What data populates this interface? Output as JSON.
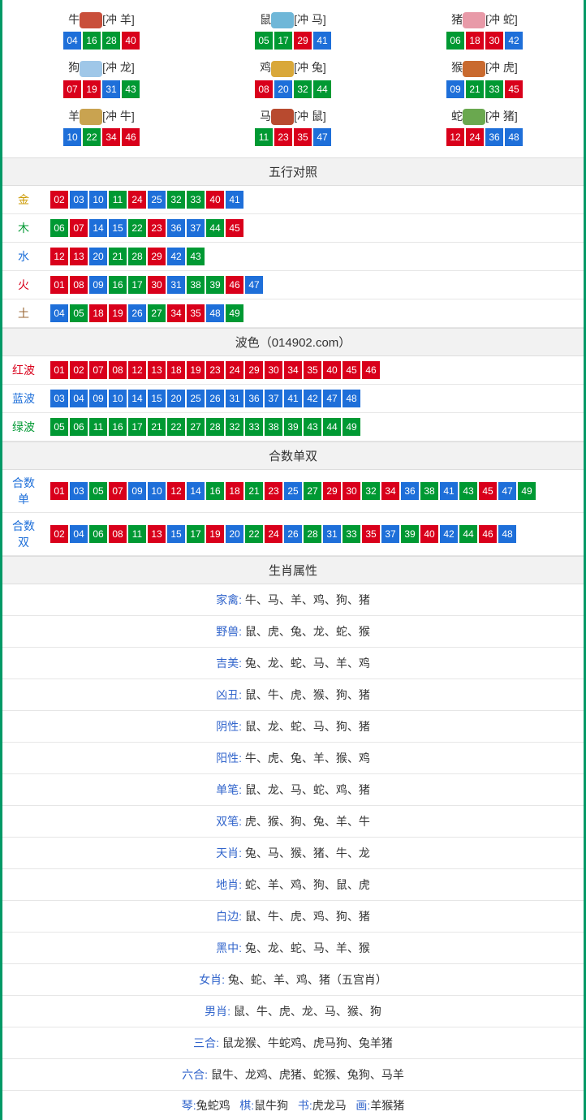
{
  "colors": {
    "red": "#d9001b",
    "blue": "#1e6fd9",
    "green": "#009933",
    "border": "#009966"
  },
  "zodiac_icon_colors": {
    "牛": "#c94f3b",
    "鼠": "#6fb7d8",
    "猪": "#e89aa8",
    "狗": "#9fc7e8",
    "鸡": "#d9a83a",
    "猴": "#c96a2f",
    "羊": "#c9a350",
    "马": "#b84a2f",
    "蛇": "#6aa84f"
  },
  "zodiac": [
    {
      "name": "牛",
      "clash": "[冲 羊]",
      "balls": [
        {
          "n": "04",
          "c": "blue"
        },
        {
          "n": "16",
          "c": "green"
        },
        {
          "n": "28",
          "c": "green"
        },
        {
          "n": "40",
          "c": "red"
        }
      ]
    },
    {
      "name": "鼠",
      "clash": "[冲 马]",
      "balls": [
        {
          "n": "05",
          "c": "green"
        },
        {
          "n": "17",
          "c": "green"
        },
        {
          "n": "29",
          "c": "red"
        },
        {
          "n": "41",
          "c": "blue"
        }
      ]
    },
    {
      "name": "猪",
      "clash": "[冲 蛇]",
      "balls": [
        {
          "n": "06",
          "c": "green"
        },
        {
          "n": "18",
          "c": "red"
        },
        {
          "n": "30",
          "c": "red"
        },
        {
          "n": "42",
          "c": "blue"
        }
      ]
    },
    {
      "name": "狗",
      "clash": "[冲 龙]",
      "balls": [
        {
          "n": "07",
          "c": "red"
        },
        {
          "n": "19",
          "c": "red"
        },
        {
          "n": "31",
          "c": "blue"
        },
        {
          "n": "43",
          "c": "green"
        }
      ]
    },
    {
      "name": "鸡",
      "clash": "[冲 兔]",
      "balls": [
        {
          "n": "08",
          "c": "red"
        },
        {
          "n": "20",
          "c": "blue"
        },
        {
          "n": "32",
          "c": "green"
        },
        {
          "n": "44",
          "c": "green"
        }
      ]
    },
    {
      "name": "猴",
      "clash": "[冲 虎]",
      "balls": [
        {
          "n": "09",
          "c": "blue"
        },
        {
          "n": "21",
          "c": "green"
        },
        {
          "n": "33",
          "c": "green"
        },
        {
          "n": "45",
          "c": "red"
        }
      ]
    },
    {
      "name": "羊",
      "clash": "[冲 牛]",
      "balls": [
        {
          "n": "10",
          "c": "blue"
        },
        {
          "n": "22",
          "c": "green"
        },
        {
          "n": "34",
          "c": "red"
        },
        {
          "n": "46",
          "c": "red"
        }
      ]
    },
    {
      "name": "马",
      "clash": "[冲 鼠]",
      "balls": [
        {
          "n": "11",
          "c": "green"
        },
        {
          "n": "23",
          "c": "red"
        },
        {
          "n": "35",
          "c": "red"
        },
        {
          "n": "47",
          "c": "blue"
        }
      ]
    },
    {
      "name": "蛇",
      "clash": "[冲 猪]",
      "balls": [
        {
          "n": "12",
          "c": "red"
        },
        {
          "n": "24",
          "c": "red"
        },
        {
          "n": "36",
          "c": "blue"
        },
        {
          "n": "48",
          "c": "blue"
        }
      ]
    }
  ],
  "wuxing_header": "五行对照",
  "wuxing": [
    {
      "label": "金",
      "label_color": "#cc9900",
      "balls": [
        {
          "n": "02",
          "c": "red"
        },
        {
          "n": "03",
          "c": "blue"
        },
        {
          "n": "10",
          "c": "blue"
        },
        {
          "n": "11",
          "c": "green"
        },
        {
          "n": "24",
          "c": "red"
        },
        {
          "n": "25",
          "c": "blue"
        },
        {
          "n": "32",
          "c": "green"
        },
        {
          "n": "33",
          "c": "green"
        },
        {
          "n": "40",
          "c": "red"
        },
        {
          "n": "41",
          "c": "blue"
        }
      ]
    },
    {
      "label": "木",
      "label_color": "#009933",
      "balls": [
        {
          "n": "06",
          "c": "green"
        },
        {
          "n": "07",
          "c": "red"
        },
        {
          "n": "14",
          "c": "blue"
        },
        {
          "n": "15",
          "c": "blue"
        },
        {
          "n": "22",
          "c": "green"
        },
        {
          "n": "23",
          "c": "red"
        },
        {
          "n": "36",
          "c": "blue"
        },
        {
          "n": "37",
          "c": "blue"
        },
        {
          "n": "44",
          "c": "green"
        },
        {
          "n": "45",
          "c": "red"
        }
      ]
    },
    {
      "label": "水",
      "label_color": "#1e6fd9",
      "balls": [
        {
          "n": "12",
          "c": "red"
        },
        {
          "n": "13",
          "c": "red"
        },
        {
          "n": "20",
          "c": "blue"
        },
        {
          "n": "21",
          "c": "green"
        },
        {
          "n": "28",
          "c": "green"
        },
        {
          "n": "29",
          "c": "red"
        },
        {
          "n": "42",
          "c": "blue"
        },
        {
          "n": "43",
          "c": "green"
        }
      ]
    },
    {
      "label": "火",
      "label_color": "#d9001b",
      "balls": [
        {
          "n": "01",
          "c": "red"
        },
        {
          "n": "08",
          "c": "red"
        },
        {
          "n": "09",
          "c": "blue"
        },
        {
          "n": "16",
          "c": "green"
        },
        {
          "n": "17",
          "c": "green"
        },
        {
          "n": "30",
          "c": "red"
        },
        {
          "n": "31",
          "c": "blue"
        },
        {
          "n": "38",
          "c": "green"
        },
        {
          "n": "39",
          "c": "green"
        },
        {
          "n": "46",
          "c": "red"
        },
        {
          "n": "47",
          "c": "blue"
        }
      ]
    },
    {
      "label": "土",
      "label_color": "#996633",
      "balls": [
        {
          "n": "04",
          "c": "blue"
        },
        {
          "n": "05",
          "c": "green"
        },
        {
          "n": "18",
          "c": "red"
        },
        {
          "n": "19",
          "c": "red"
        },
        {
          "n": "26",
          "c": "blue"
        },
        {
          "n": "27",
          "c": "green"
        },
        {
          "n": "34",
          "c": "red"
        },
        {
          "n": "35",
          "c": "red"
        },
        {
          "n": "48",
          "c": "blue"
        },
        {
          "n": "49",
          "c": "green"
        }
      ]
    }
  ],
  "bose_header": "波色（014902.com）",
  "bose": [
    {
      "label": "红波",
      "label_color": "#d9001b",
      "balls": [
        {
          "n": "01",
          "c": "red"
        },
        {
          "n": "02",
          "c": "red"
        },
        {
          "n": "07",
          "c": "red"
        },
        {
          "n": "08",
          "c": "red"
        },
        {
          "n": "12",
          "c": "red"
        },
        {
          "n": "13",
          "c": "red"
        },
        {
          "n": "18",
          "c": "red"
        },
        {
          "n": "19",
          "c": "red"
        },
        {
          "n": "23",
          "c": "red"
        },
        {
          "n": "24",
          "c": "red"
        },
        {
          "n": "29",
          "c": "red"
        },
        {
          "n": "30",
          "c": "red"
        },
        {
          "n": "34",
          "c": "red"
        },
        {
          "n": "35",
          "c": "red"
        },
        {
          "n": "40",
          "c": "red"
        },
        {
          "n": "45",
          "c": "red"
        },
        {
          "n": "46",
          "c": "red"
        }
      ]
    },
    {
      "label": "蓝波",
      "label_color": "#1e6fd9",
      "balls": [
        {
          "n": "03",
          "c": "blue"
        },
        {
          "n": "04",
          "c": "blue"
        },
        {
          "n": "09",
          "c": "blue"
        },
        {
          "n": "10",
          "c": "blue"
        },
        {
          "n": "14",
          "c": "blue"
        },
        {
          "n": "15",
          "c": "blue"
        },
        {
          "n": "20",
          "c": "blue"
        },
        {
          "n": "25",
          "c": "blue"
        },
        {
          "n": "26",
          "c": "blue"
        },
        {
          "n": "31",
          "c": "blue"
        },
        {
          "n": "36",
          "c": "blue"
        },
        {
          "n": "37",
          "c": "blue"
        },
        {
          "n": "41",
          "c": "blue"
        },
        {
          "n": "42",
          "c": "blue"
        },
        {
          "n": "47",
          "c": "blue"
        },
        {
          "n": "48",
          "c": "blue"
        }
      ]
    },
    {
      "label": "绿波",
      "label_color": "#009933",
      "balls": [
        {
          "n": "05",
          "c": "green"
        },
        {
          "n": "06",
          "c": "green"
        },
        {
          "n": "11",
          "c": "green"
        },
        {
          "n": "16",
          "c": "green"
        },
        {
          "n": "17",
          "c": "green"
        },
        {
          "n": "21",
          "c": "green"
        },
        {
          "n": "22",
          "c": "green"
        },
        {
          "n": "27",
          "c": "green"
        },
        {
          "n": "28",
          "c": "green"
        },
        {
          "n": "32",
          "c": "green"
        },
        {
          "n": "33",
          "c": "green"
        },
        {
          "n": "38",
          "c": "green"
        },
        {
          "n": "39",
          "c": "green"
        },
        {
          "n": "43",
          "c": "green"
        },
        {
          "n": "44",
          "c": "green"
        },
        {
          "n": "49",
          "c": "green"
        }
      ]
    }
  ],
  "heshu_header": "合数单双",
  "heshu": [
    {
      "label": "合数单",
      "label_color": "#1e6fd9",
      "balls": [
        {
          "n": "01",
          "c": "red"
        },
        {
          "n": "03",
          "c": "blue"
        },
        {
          "n": "05",
          "c": "green"
        },
        {
          "n": "07",
          "c": "red"
        },
        {
          "n": "09",
          "c": "blue"
        },
        {
          "n": "10",
          "c": "blue"
        },
        {
          "n": "12",
          "c": "red"
        },
        {
          "n": "14",
          "c": "blue"
        },
        {
          "n": "16",
          "c": "green"
        },
        {
          "n": "18",
          "c": "red"
        },
        {
          "n": "21",
          "c": "green"
        },
        {
          "n": "23",
          "c": "red"
        },
        {
          "n": "25",
          "c": "blue"
        },
        {
          "n": "27",
          "c": "green"
        },
        {
          "n": "29",
          "c": "red"
        },
        {
          "n": "30",
          "c": "red"
        },
        {
          "n": "32",
          "c": "green"
        },
        {
          "n": "34",
          "c": "red"
        },
        {
          "n": "36",
          "c": "blue"
        },
        {
          "n": "38",
          "c": "green"
        },
        {
          "n": "41",
          "c": "blue"
        },
        {
          "n": "43",
          "c": "green"
        },
        {
          "n": "45",
          "c": "red"
        },
        {
          "n": "47",
          "c": "blue"
        },
        {
          "n": "49",
          "c": "green"
        }
      ]
    },
    {
      "label": "合数双",
      "label_color": "#1e6fd9",
      "balls": [
        {
          "n": "02",
          "c": "red"
        },
        {
          "n": "04",
          "c": "blue"
        },
        {
          "n": "06",
          "c": "green"
        },
        {
          "n": "08",
          "c": "red"
        },
        {
          "n": "11",
          "c": "green"
        },
        {
          "n": "13",
          "c": "red"
        },
        {
          "n": "15",
          "c": "blue"
        },
        {
          "n": "17",
          "c": "green"
        },
        {
          "n": "19",
          "c": "red"
        },
        {
          "n": "20",
          "c": "blue"
        },
        {
          "n": "22",
          "c": "green"
        },
        {
          "n": "24",
          "c": "red"
        },
        {
          "n": "26",
          "c": "blue"
        },
        {
          "n": "28",
          "c": "green"
        },
        {
          "n": "31",
          "c": "blue"
        },
        {
          "n": "33",
          "c": "green"
        },
        {
          "n": "35",
          "c": "red"
        },
        {
          "n": "37",
          "c": "blue"
        },
        {
          "n": "39",
          "c": "green"
        },
        {
          "n": "40",
          "c": "red"
        },
        {
          "n": "42",
          "c": "blue"
        },
        {
          "n": "44",
          "c": "green"
        },
        {
          "n": "46",
          "c": "red"
        },
        {
          "n": "48",
          "c": "blue"
        }
      ]
    }
  ],
  "attr_header": "生肖属性",
  "attrs": [
    {
      "k": "家禽:",
      "v": "牛、马、羊、鸡、狗、猪"
    },
    {
      "k": "野兽:",
      "v": "鼠、虎、兔、龙、蛇、猴"
    },
    {
      "k": "吉美:",
      "v": "兔、龙、蛇、马、羊、鸡"
    },
    {
      "k": "凶丑:",
      "v": "鼠、牛、虎、猴、狗、猪"
    },
    {
      "k": "阴性:",
      "v": "鼠、龙、蛇、马、狗、猪"
    },
    {
      "k": "阳性:",
      "v": "牛、虎、兔、羊、猴、鸡"
    },
    {
      "k": "单笔:",
      "v": "鼠、龙、马、蛇、鸡、猪"
    },
    {
      "k": "双笔:",
      "v": "虎、猴、狗、兔、羊、牛"
    },
    {
      "k": "天肖:",
      "v": "兔、马、猴、猪、牛、龙"
    },
    {
      "k": "地肖:",
      "v": "蛇、羊、鸡、狗、鼠、虎"
    },
    {
      "k": "白边:",
      "v": "鼠、牛、虎、鸡、狗、猪"
    },
    {
      "k": "黑中:",
      "v": "兔、龙、蛇、马、羊、猴"
    },
    {
      "k": "女肖:",
      "v": "兔、蛇、羊、鸡、猪（五宫肖）"
    },
    {
      "k": "男肖:",
      "v": "鼠、牛、虎、龙、马、猴、狗"
    },
    {
      "k": "三合:",
      "v": "鼠龙猴、牛蛇鸡、虎马狗、兔羊猪"
    },
    {
      "k": "六合:",
      "v": "鼠牛、龙鸡、虎猪、蛇猴、兔狗、马羊"
    }
  ],
  "bottom_pairs": [
    {
      "k": "琴:",
      "v": "兔蛇鸡"
    },
    {
      "k": "棋:",
      "v": "鼠牛狗"
    },
    {
      "k": "书:",
      "v": "虎龙马"
    },
    {
      "k": "画:",
      "v": "羊猴猪"
    }
  ]
}
